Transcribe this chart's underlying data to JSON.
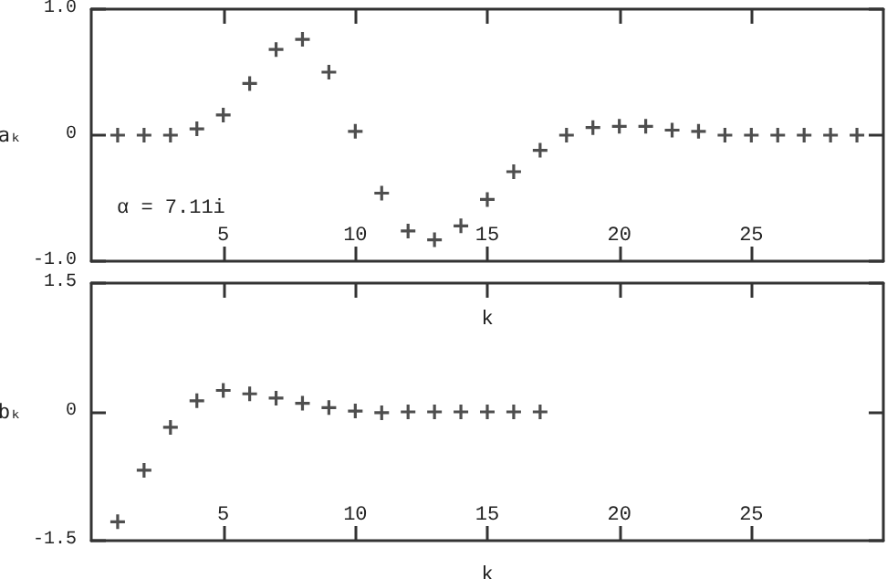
{
  "chart_data": [
    {
      "type": "scatter",
      "xlabel": "k",
      "ylabel": "aₖ",
      "marker": "cross",
      "grid": false,
      "annotations": [
        "α = 7.11i"
      ],
      "x": [
        1,
        2,
        3,
        4,
        5,
        6,
        7,
        8,
        9,
        10,
        11,
        12,
        13,
        14,
        15,
        16,
        17,
        18,
        19,
        20,
        21,
        22,
        23,
        24,
        25,
        26,
        27,
        28,
        29
      ],
      "series": [
        {
          "color": "#222222",
          "values": [
            0,
            0,
            0,
            0.05,
            0.16,
            0.41,
            0.68,
            0.76,
            0.5,
            0.03,
            -0.46,
            -0.76,
            -0.83,
            -0.72,
            -0.51,
            -0.29,
            -0.12,
            0,
            0.06,
            0.07,
            0.07,
            0.04,
            0.03,
            0,
            0,
            0,
            0,
            0,
            0
          ]
        }
      ],
      "xlim": [
        0,
        30
      ],
      "xticks": [
        5,
        10,
        15,
        20,
        25
      ],
      "ylim": [
        -1,
        1
      ],
      "yticks": [
        {
          "value": -1,
          "label": "-1.0"
        },
        0,
        {
          "value": 1,
          "label": "1.0"
        }
      ]
    },
    {
      "type": "scatter",
      "xlabel": "k",
      "ylabel": "bₖ",
      "marker": "cross",
      "grid": false,
      "x": [
        1,
        2,
        3,
        4,
        5,
        6,
        7,
        8,
        9,
        10,
        11,
        12,
        13,
        14,
        15,
        16,
        17
      ],
      "series": [
        {
          "color": "#222222",
          "values": [
            -1.28,
            -0.68,
            -0.18,
            0.13,
            0.25,
            0.21,
            0.16,
            0.1,
            0.05,
            0.01,
            -0.01,
            0,
            0,
            0,
            0,
            0,
            0
          ]
        }
      ],
      "xlim": [
        0,
        30
      ],
      "xticks": [
        5,
        10,
        15,
        20,
        25
      ],
      "ylim": [
        -1.5,
        1.5
      ],
      "yticks": [
        {
          "value": -1.5,
          "label": "-1.5"
        },
        0,
        {
          "value": 1.5,
          "label": "1.5"
        }
      ]
    }
  ]
}
